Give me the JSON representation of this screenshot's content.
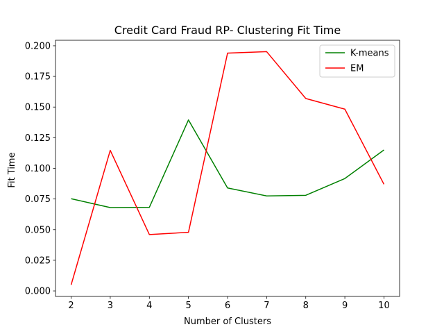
{
  "chart_data": {
    "type": "line",
    "title": "Credit Card Fraud RP- Clustering Fit Time",
    "xlabel": "Number of Clusters",
    "ylabel": "Fit Time",
    "x": [
      2,
      3,
      4,
      5,
      6,
      7,
      8,
      9,
      10
    ],
    "xticks": [
      "2",
      "3",
      "4",
      "5",
      "6",
      "7",
      "8",
      "9",
      "10"
    ],
    "yticks": [
      "0.000",
      "0.025",
      "0.050",
      "0.075",
      "0.100",
      "0.125",
      "0.150",
      "0.175",
      "0.200"
    ],
    "ytick_values": [
      0,
      0.025,
      0.05,
      0.075,
      0.1,
      0.125,
      0.15,
      0.175,
      0.2
    ],
    "xlim": [
      1.6,
      10.4
    ],
    "ylim": [
      -0.0045,
      0.2045
    ],
    "legend_position": "top-right",
    "grid": false,
    "series": [
      {
        "name": "K-means",
        "color": "#008000",
        "values": [
          0.0752,
          0.068,
          0.0682,
          0.1395,
          0.084,
          0.0775,
          0.078,
          0.0917,
          0.115
        ]
      },
      {
        "name": "EM",
        "color": "#ff0000",
        "values": [
          0.005,
          0.1147,
          0.046,
          0.0478,
          0.194,
          0.1952,
          0.157,
          0.1483,
          0.087
        ]
      }
    ]
  }
}
